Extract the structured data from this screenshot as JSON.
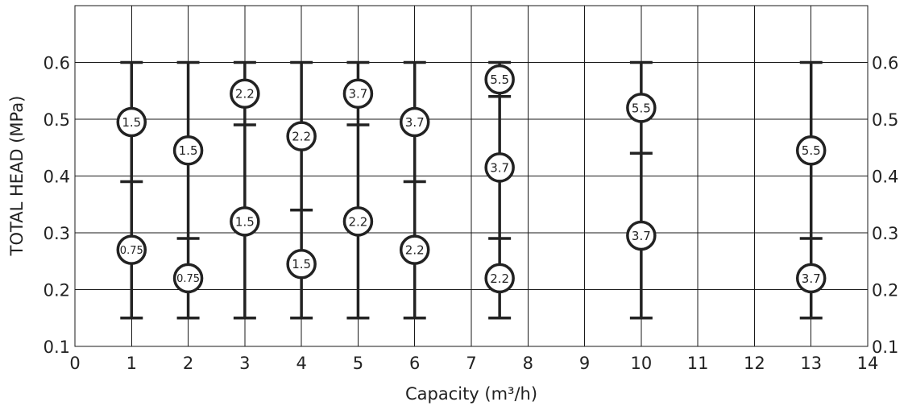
{
  "chart_data": {
    "type": "range",
    "xlabel": "Capacity (m³/h)",
    "ylabel": "TOTAL HEAD (MPa)",
    "xlim": [
      0,
      14
    ],
    "ylim": [
      0.1,
      0.7
    ],
    "x_ticks": [
      0,
      1,
      2,
      3,
      4,
      5,
      6,
      7,
      8,
      9,
      10,
      11,
      12,
      13,
      14
    ],
    "x_tick_labels": [
      "0",
      "1",
      "2",
      "3",
      "4",
      "5",
      "6",
      "7",
      "8",
      "9",
      "10",
      "11",
      "12",
      "13",
      "14"
    ],
    "y_ticks": [
      0.1,
      0.2,
      0.3,
      0.4,
      0.5,
      0.6
    ],
    "y_tick_labels": [
      "0.1",
      "0.2",
      "0.3",
      "0.4",
      "0.5",
      "0.6"
    ],
    "grid": true,
    "series": [
      {
        "x": 1,
        "ymin": 0.15,
        "ymax": 0.6,
        "dividers": [
          0.39
        ],
        "markers": [
          {
            "label": "1.5",
            "y": 0.495
          },
          {
            "label": "0.75",
            "y": 0.27
          }
        ]
      },
      {
        "x": 2,
        "ymin": 0.15,
        "ymax": 0.6,
        "dividers": [
          0.29
        ],
        "markers": [
          {
            "label": "1.5",
            "y": 0.445
          },
          {
            "label": "0.75",
            "y": 0.22
          }
        ]
      },
      {
        "x": 3,
        "ymin": 0.15,
        "ymax": 0.6,
        "dividers": [
          0.49
        ],
        "markers": [
          {
            "label": "2.2",
            "y": 0.545
          },
          {
            "label": "1.5",
            "y": 0.32
          }
        ]
      },
      {
        "x": 4,
        "ymin": 0.15,
        "ymax": 0.6,
        "dividers": [
          0.34
        ],
        "markers": [
          {
            "label": "2.2",
            "y": 0.47
          },
          {
            "label": "1.5",
            "y": 0.245
          }
        ]
      },
      {
        "x": 5,
        "ymin": 0.15,
        "ymax": 0.6,
        "dividers": [
          0.49
        ],
        "markers": [
          {
            "label": "3.7",
            "y": 0.545
          },
          {
            "label": "2.2",
            "y": 0.32
          }
        ]
      },
      {
        "x": 6,
        "ymin": 0.15,
        "ymax": 0.6,
        "dividers": [
          0.39
        ],
        "markers": [
          {
            "label": "3.7",
            "y": 0.495
          },
          {
            "label": "2.2",
            "y": 0.27
          }
        ]
      },
      {
        "x": 7.5,
        "ymin": 0.15,
        "ymax": 0.6,
        "dividers": [
          0.54,
          0.29
        ],
        "markers": [
          {
            "label": "5.5",
            "y": 0.57
          },
          {
            "label": "3.7",
            "y": 0.415
          },
          {
            "label": "2.2",
            "y": 0.22
          }
        ]
      },
      {
        "x": 10,
        "ymin": 0.15,
        "ymax": 0.6,
        "dividers": [
          0.44
        ],
        "markers": [
          {
            "label": "5.5",
            "y": 0.52
          },
          {
            "label": "3.7",
            "y": 0.295
          }
        ]
      },
      {
        "x": 13,
        "ymin": 0.15,
        "ymax": 0.6,
        "dividers": [
          0.29
        ],
        "markers": [
          {
            "label": "5.5",
            "y": 0.445
          },
          {
            "label": "3.7",
            "y": 0.22
          }
        ]
      }
    ]
  }
}
